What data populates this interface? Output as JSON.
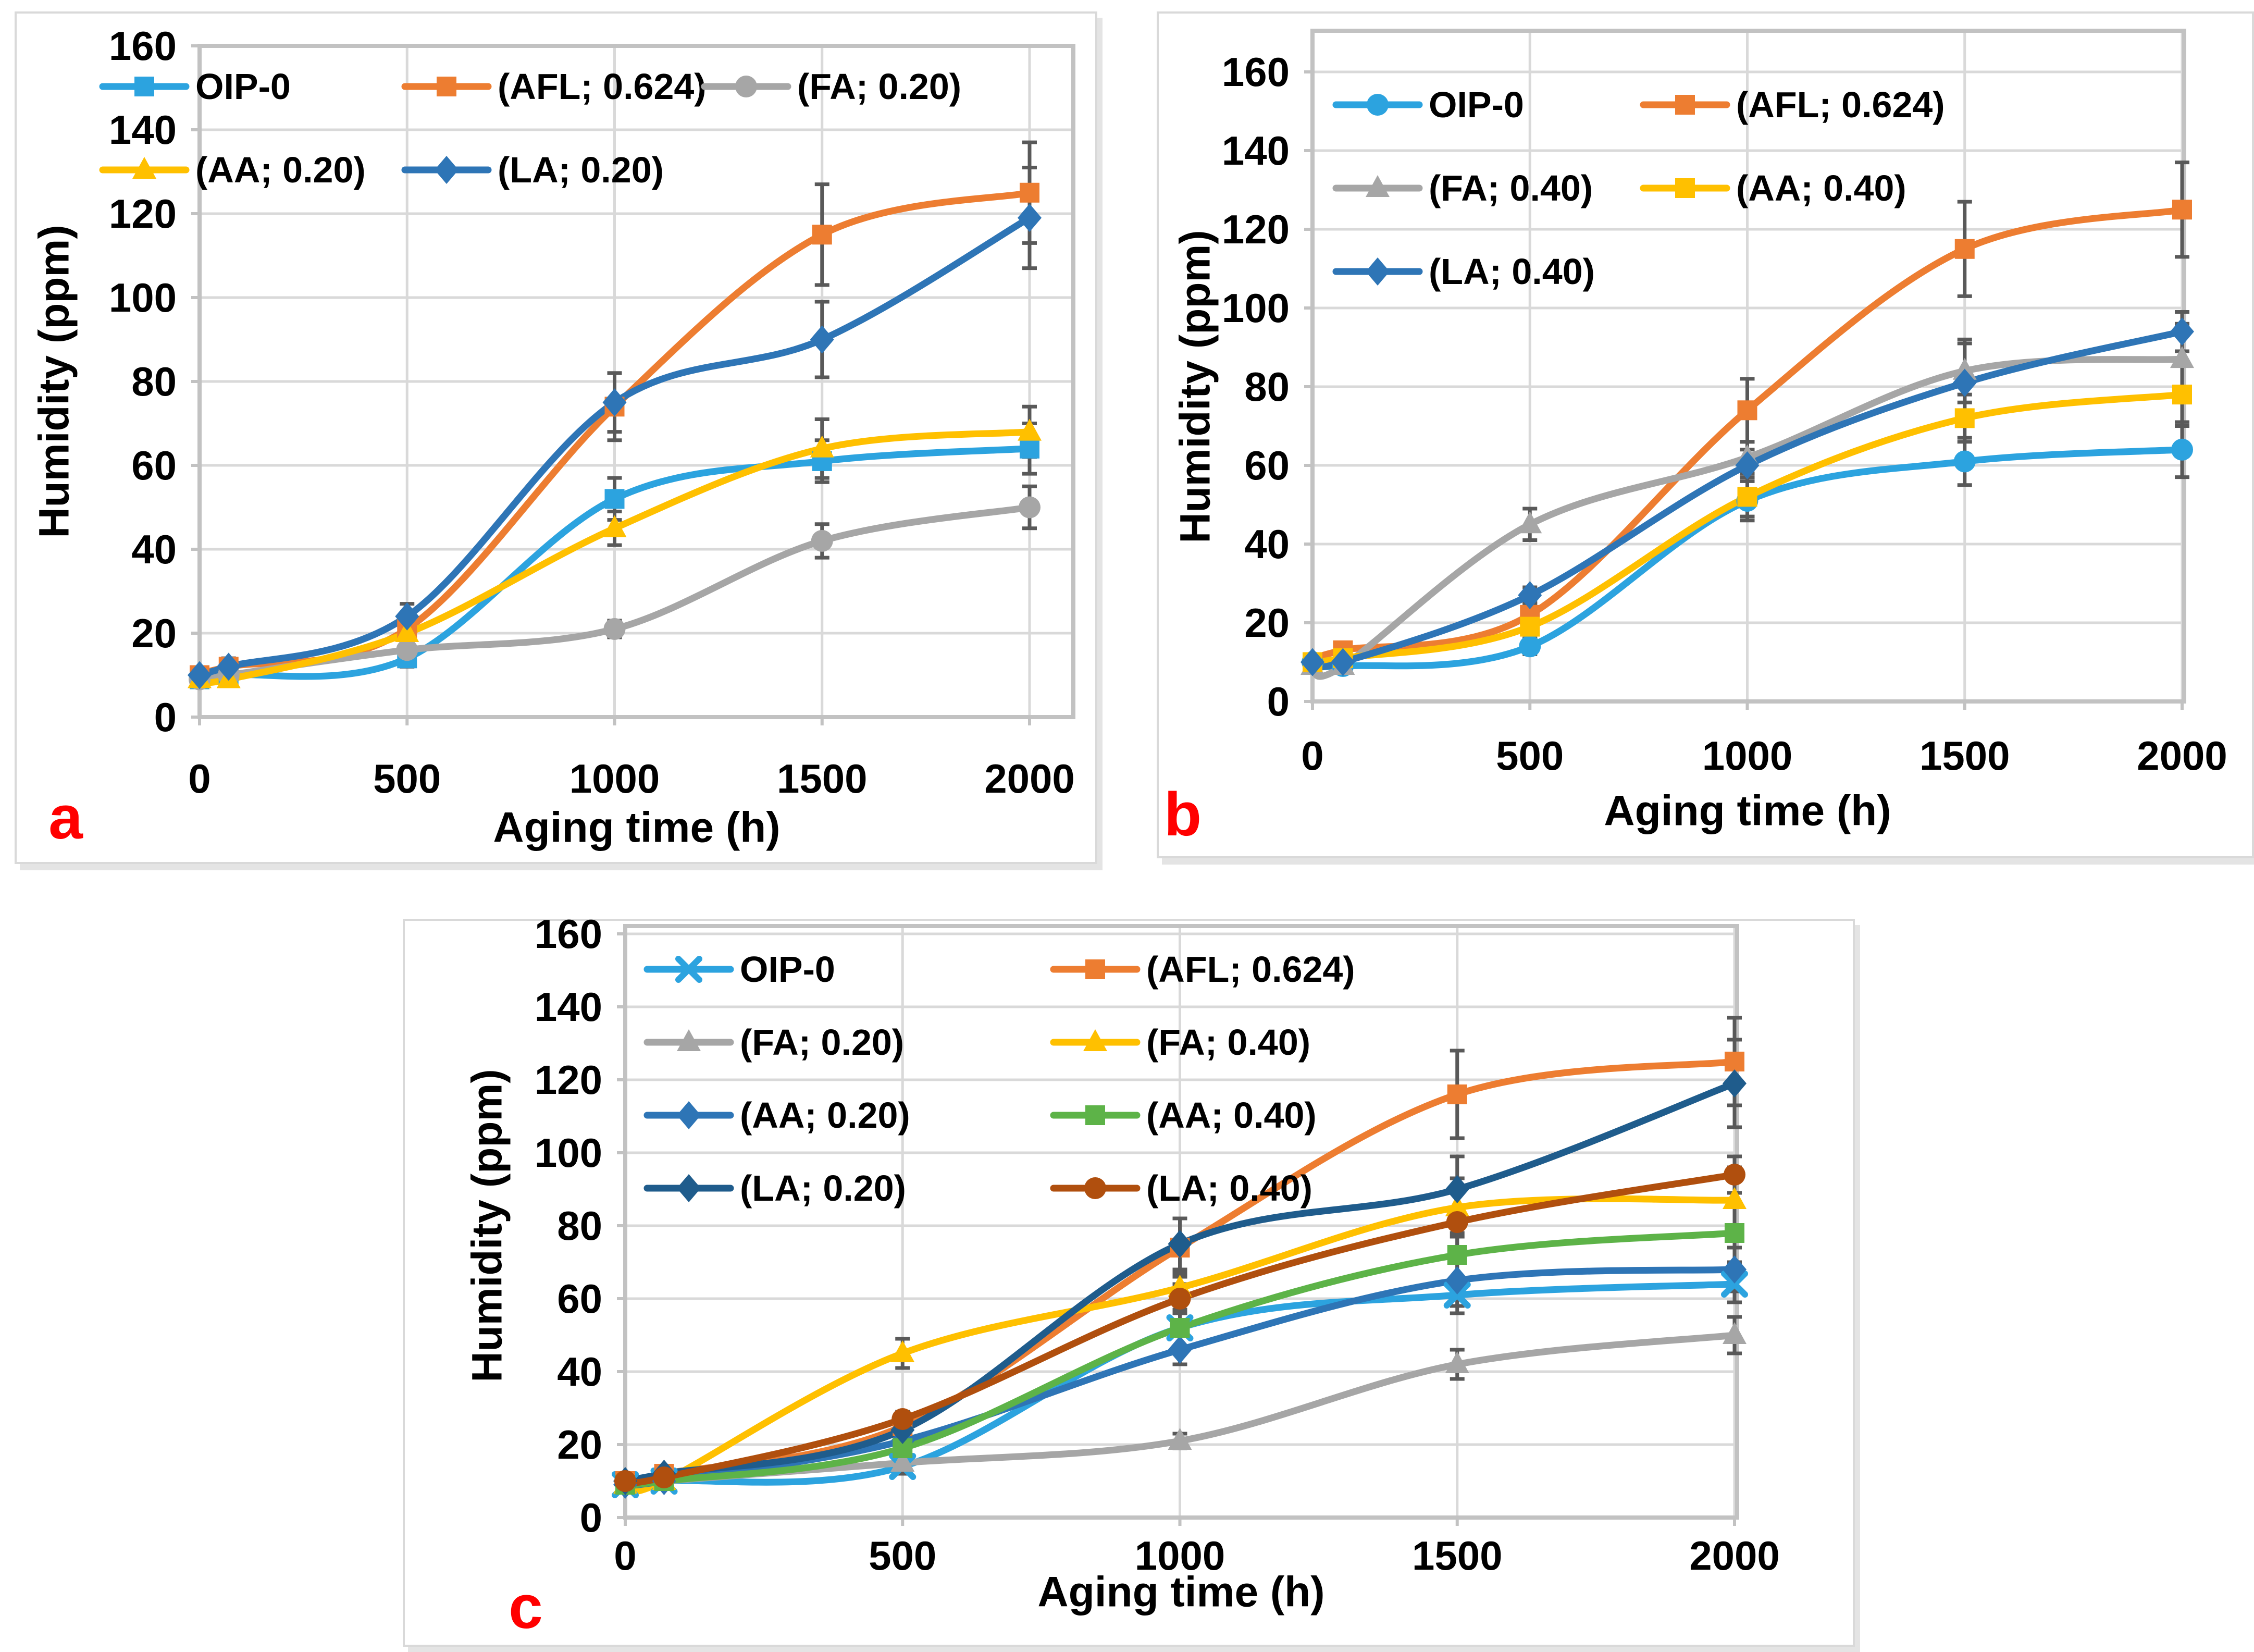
{
  "figure": {
    "background": "#FFFFFF",
    "panel_letter_color": "#FF0000",
    "grid_color": "#D9D9D9",
    "axis_color": "#C2C2C2",
    "error_bar_color": "#595959",
    "text_color": "#000000"
  },
  "chart_data": [
    {
      "panel": "a",
      "type": "line",
      "title": "",
      "xlabel": "Aging time (h)",
      "ylabel": "Humidity (ppm)",
      "x": [
        0,
        70,
        500,
        1000,
        1500,
        2000
      ],
      "xticks": [
        0,
        500,
        1000,
        1500,
        2000
      ],
      "ylim": [
        0,
        160
      ],
      "ytick_step": 20,
      "grid": true,
      "legend_position": "inside-top",
      "legend_columns": 3,
      "series": [
        {
          "name": "OIP-0",
          "color": "#2CA3DF",
          "marker": "square",
          "values": [
            9,
            10,
            14,
            52,
            61,
            64
          ],
          "errors": [
            1,
            1,
            2,
            5,
            5,
            6
          ]
        },
        {
          "name": "(AFL; 0.624)",
          "color": "#ED7D31",
          "marker": "square",
          "values": [
            10,
            12,
            21,
            74,
            115,
            125
          ],
          "errors": [
            1,
            2,
            3,
            8,
            12,
            12
          ]
        },
        {
          "name": "(FA; 0.20)",
          "color": "#A6A6A6",
          "marker": "circle",
          "values": [
            9,
            10,
            16,
            21,
            42,
            50
          ],
          "errors": [
            1,
            1,
            3,
            2,
            4,
            5
          ]
        },
        {
          "name": "(AA; 0.20)",
          "color": "#FFC000",
          "marker": "triangle",
          "values": [
            9,
            9,
            20,
            45,
            64,
            68
          ],
          "errors": [
            1,
            1,
            2,
            4,
            7,
            6
          ]
        },
        {
          "name": "(LA; 0.20)",
          "color": "#2E75B6",
          "marker": "diamond",
          "values": [
            10,
            12,
            24,
            75,
            90,
            119
          ],
          "errors": [
            1,
            2,
            3,
            7,
            9,
            12
          ]
        }
      ]
    },
    {
      "panel": "b",
      "type": "line",
      "title": "",
      "xlabel": "Aging time (h)",
      "ylabel": "Humidity (ppm)",
      "x": [
        0,
        70,
        500,
        1000,
        1500,
        2000
      ],
      "xticks": [
        0,
        500,
        1000,
        1500,
        2000
      ],
      "ylim": [
        0,
        160
      ],
      "ytick_step": 20,
      "grid": true,
      "legend_position": "inside-top",
      "legend_columns": 2,
      "series": [
        {
          "name": "OIP-0",
          "color": "#2CA3DF",
          "marker": "circle",
          "values": [
            10,
            9,
            14,
            51,
            61,
            64
          ],
          "errors": [
            1,
            1,
            2,
            5,
            6,
            7
          ]
        },
        {
          "name": "(AFL; 0.624)",
          "color": "#ED7D31",
          "marker": "square",
          "values": [
            10,
            13,
            22,
            74,
            115,
            125
          ],
          "errors": [
            1,
            2,
            3,
            8,
            12,
            12
          ]
        },
        {
          "name": "(FA; 0.40)",
          "color": "#A6A6A6",
          "marker": "triangle",
          "values": [
            9,
            9,
            45,
            62,
            84,
            87
          ],
          "errors": [
            1,
            1,
            4,
            4,
            8,
            9
          ]
        },
        {
          "name": "(AA; 0.40)",
          "color": "#FFC000",
          "marker": "square",
          "values": [
            10,
            11,
            19,
            52,
            72,
            78
          ],
          "errors": [
            1,
            1,
            3,
            5,
            6,
            8
          ]
        },
        {
          "name": "(LA; 0.40)",
          "color": "#2E75B6",
          "marker": "diamond",
          "values": [
            10,
            10,
            27,
            60,
            81,
            94
          ],
          "errors": [
            1,
            1,
            2,
            4,
            10,
            5
          ]
        }
      ]
    },
    {
      "panel": "c",
      "type": "line",
      "title": "",
      "xlabel": "Aging time  (h)",
      "ylabel": "Humidity (ppm)",
      "x": [
        0,
        70,
        500,
        1000,
        1500,
        2000
      ],
      "xticks": [
        0,
        500,
        1000,
        1500,
        2000
      ],
      "ylim": [
        0,
        160
      ],
      "ytick_step": 20,
      "grid": true,
      "legend_position": "inside-top",
      "legend_columns": 2,
      "series": [
        {
          "name": "OIP-0",
          "color": "#2CA3DF",
          "marker": "x",
          "values": [
            9,
            10,
            14,
            52,
            61,
            64
          ],
          "errors": [
            1,
            1,
            2,
            5,
            5,
            5
          ]
        },
        {
          "name": "(AFL; 0.624)",
          "color": "#ED7D31",
          "marker": "square",
          "values": [
            10,
            12,
            25,
            74,
            116,
            125
          ],
          "errors": [
            1,
            2,
            3,
            8,
            12,
            12
          ]
        },
        {
          "name": "(FA; 0.20)",
          "color": "#A6A6A6",
          "marker": "triangle",
          "values": [
            9,
            10,
            15,
            21,
            42,
            50
          ],
          "errors": [
            1,
            1,
            3,
            2,
            4,
            5
          ]
        },
        {
          "name": "(FA; 0.40)",
          "color": "#FFC000",
          "marker": "triangle",
          "values": [
            9,
            10,
            45,
            63,
            85,
            87
          ],
          "errors": [
            1,
            1,
            4,
            4,
            8,
            9
          ]
        },
        {
          "name": "(AA; 0.20)",
          "color": "#2E75B6",
          "marker": "diamond",
          "values": [
            9,
            10,
            21,
            46,
            65,
            68
          ],
          "errors": [
            1,
            1,
            2,
            4,
            7,
            6
          ]
        },
        {
          "name": "(AA; 0.40)",
          "color": "#5DB348",
          "marker": "square",
          "values": [
            9,
            10,
            19,
            52,
            72,
            78
          ],
          "errors": [
            1,
            1,
            3,
            5,
            6,
            8
          ]
        },
        {
          "name": "(LA; 0.20)",
          "color": "#1F5C8C",
          "marker": "diamond",
          "values": [
            10,
            12,
            24,
            75,
            90,
            119
          ],
          "errors": [
            1,
            2,
            3,
            7,
            9,
            12
          ]
        },
        {
          "name": "(LA; 0.40)",
          "color": "#B04F0E",
          "marker": "circle",
          "values": [
            10,
            11,
            27,
            60,
            81,
            94
          ],
          "errors": [
            1,
            1,
            2,
            4,
            10,
            5
          ]
        }
      ]
    }
  ]
}
